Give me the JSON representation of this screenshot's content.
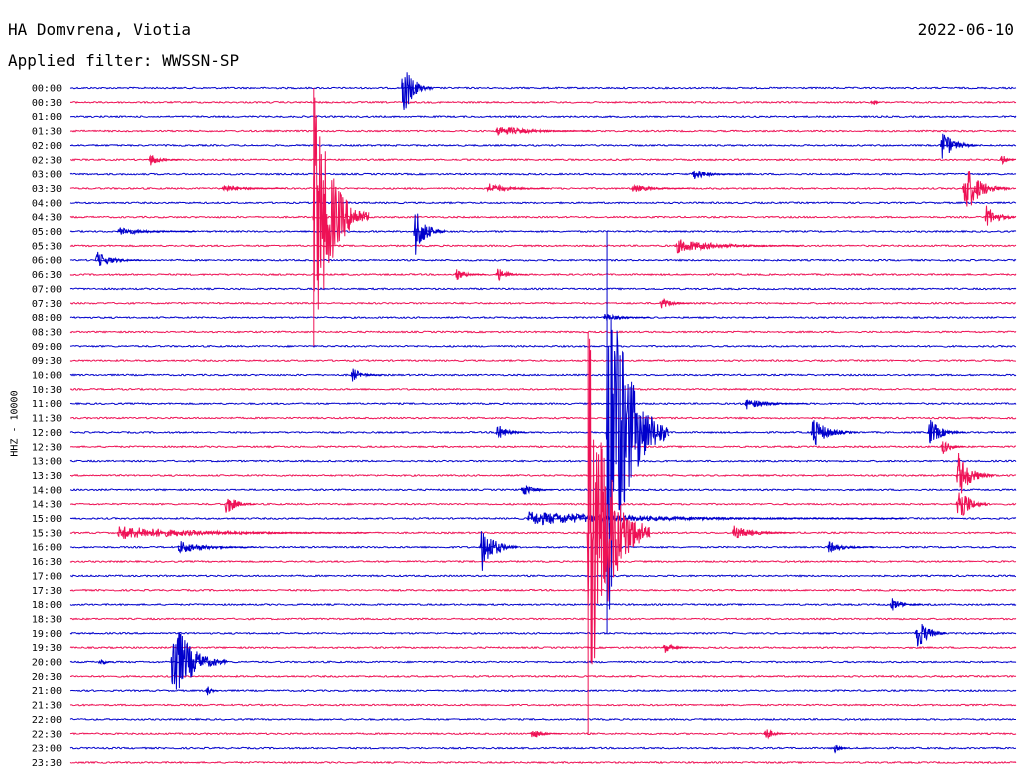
{
  "header": {
    "station": "HA Domvrena, Viotia",
    "date": "2022-06-10",
    "filter": "Applied filter: WWSSN-SP"
  },
  "chart_data": {
    "type": "line",
    "title": "HA Domvrena, Viotia",
    "subtitle": "Applied filter: WWSSN-SP",
    "ylabel": "HHZ - 10000",
    "xlabel": "",
    "grid": false,
    "colors": {
      "even_rows": "#0000cc",
      "odd_rows": "#ee1155"
    },
    "row_labels": [
      "00:00",
      "00:30",
      "01:00",
      "01:30",
      "02:00",
      "02:30",
      "03:00",
      "03:30",
      "04:00",
      "04:30",
      "05:00",
      "05:30",
      "06:00",
      "06:30",
      "07:00",
      "07:30",
      "08:00",
      "08:30",
      "09:00",
      "09:30",
      "10:00",
      "10:30",
      "11:00",
      "11:30",
      "12:00",
      "12:30",
      "13:00",
      "13:30",
      "14:00",
      "14:30",
      "15:00",
      "15:30",
      "16:00",
      "16:30",
      "17:00",
      "17:30",
      "18:00",
      "18:30",
      "19:00",
      "19:30",
      "20:00",
      "20:30",
      "21:00",
      "21:30",
      "22:00",
      "22:30",
      "23:00",
      "23:30"
    ],
    "row_duration_minutes": 30,
    "events": [
      {
        "row": "00:00",
        "minute": 10.5,
        "amp": 2.2,
        "len": 1.0
      },
      {
        "row": "00:30",
        "minute": 25.4,
        "amp": 0.3,
        "len": 0.3
      },
      {
        "row": "01:30",
        "minute": 13.5,
        "amp": 0.4,
        "len": 3.0
      },
      {
        "row": "02:00",
        "minute": 27.6,
        "amp": 1.1,
        "len": 1.2
      },
      {
        "row": "02:30",
        "minute": 2.5,
        "amp": 0.4,
        "len": 1.0
      },
      {
        "row": "02:30",
        "minute": 29.5,
        "amp": 0.4,
        "len": 0.6
      },
      {
        "row": "03:00",
        "minute": 19.7,
        "amp": 0.4,
        "len": 1.5
      },
      {
        "row": "03:30",
        "minute": 4.8,
        "amp": 0.3,
        "len": 2.0
      },
      {
        "row": "03:30",
        "minute": 13.2,
        "amp": 0.4,
        "len": 2.0
      },
      {
        "row": "03:30",
        "minute": 17.8,
        "amp": 0.3,
        "len": 1.8
      },
      {
        "row": "03:30",
        "minute": 28.3,
        "amp": 2.0,
        "len": 1.5
      },
      {
        "row": "04:30",
        "minute": 7.7,
        "amp": 9.0,
        "len": 1.8
      },
      {
        "row": "04:30",
        "minute": 29.0,
        "amp": 0.8,
        "len": 1.2
      },
      {
        "row": "05:00",
        "minute": 10.9,
        "amp": 1.9,
        "len": 1.0
      },
      {
        "row": "05:00",
        "minute": 1.5,
        "amp": 0.3,
        "len": 2.5
      },
      {
        "row": "05:30",
        "minute": 19.2,
        "amp": 0.5,
        "len": 4.0
      },
      {
        "row": "06:00",
        "minute": 0.8,
        "amp": 0.6,
        "len": 1.5
      },
      {
        "row": "06:30",
        "minute": 12.2,
        "amp": 0.4,
        "len": 1.0
      },
      {
        "row": "06:30",
        "minute": 13.5,
        "amp": 0.5,
        "len": 1.0
      },
      {
        "row": "07:30",
        "minute": 18.7,
        "amp": 0.4,
        "len": 1.0
      },
      {
        "row": "08:00",
        "minute": 16.9,
        "amp": 0.3,
        "len": 1.5
      },
      {
        "row": "10:00",
        "minute": 8.9,
        "amp": 0.5,
        "len": 1.0
      },
      {
        "row": "11:00",
        "minute": 21.4,
        "amp": 0.4,
        "len": 2.0
      },
      {
        "row": "12:00",
        "minute": 17.0,
        "amp": 14.0,
        "len": 2.0
      },
      {
        "row": "12:00",
        "minute": 23.5,
        "amp": 1.1,
        "len": 1.5
      },
      {
        "row": "12:00",
        "minute": 27.2,
        "amp": 1.0,
        "len": 1.2
      },
      {
        "row": "12:00",
        "minute": 13.5,
        "amp": 0.6,
        "len": 1.0
      },
      {
        "row": "12:30",
        "minute": 27.6,
        "amp": 0.6,
        "len": 0.8
      },
      {
        "row": "13:30",
        "minute": 28.1,
        "amp": 1.8,
        "len": 1.2
      },
      {
        "row": "14:00",
        "minute": 14.3,
        "amp": 0.5,
        "len": 1.0
      },
      {
        "row": "14:30",
        "minute": 4.9,
        "amp": 0.8,
        "len": 1.0
      },
      {
        "row": "14:30",
        "minute": 28.1,
        "amp": 1.8,
        "len": 1.0
      },
      {
        "row": "15:00",
        "minute": 14.5,
        "amp": 0.5,
        "len": 12.0
      },
      {
        "row": "15:30",
        "minute": 16.4,
        "amp": 14.0,
        "len": 2.0
      },
      {
        "row": "15:30",
        "minute": 1.5,
        "amp": 0.5,
        "len": 8.0
      },
      {
        "row": "15:30",
        "minute": 21.0,
        "amp": 0.5,
        "len": 2.0
      },
      {
        "row": "16:00",
        "minute": 3.4,
        "amp": 0.5,
        "len": 2.5
      },
      {
        "row": "16:00",
        "minute": 13.0,
        "amp": 1.8,
        "len": 1.2
      },
      {
        "row": "16:00",
        "minute": 24.0,
        "amp": 0.4,
        "len": 1.5
      },
      {
        "row": "18:00",
        "minute": 26.0,
        "amp": 0.5,
        "len": 1.0
      },
      {
        "row": "19:00",
        "minute": 26.8,
        "amp": 1.3,
        "len": 1.0
      },
      {
        "row": "19:30",
        "minute": 18.8,
        "amp": 0.4,
        "len": 0.8
      },
      {
        "row": "20:00",
        "minute": 3.2,
        "amp": 3.4,
        "len": 1.8
      },
      {
        "row": "20:00",
        "minute": 0.9,
        "amp": 0.3,
        "len": 0.5
      },
      {
        "row": "21:00",
        "minute": 4.3,
        "amp": 0.4,
        "len": 0.4
      },
      {
        "row": "22:30",
        "minute": 14.6,
        "amp": 0.4,
        "len": 1.0
      },
      {
        "row": "22:30",
        "minute": 22.0,
        "amp": 0.5,
        "len": 0.7
      },
      {
        "row": "23:00",
        "minute": 24.2,
        "amp": 0.3,
        "len": 0.5
      }
    ]
  }
}
